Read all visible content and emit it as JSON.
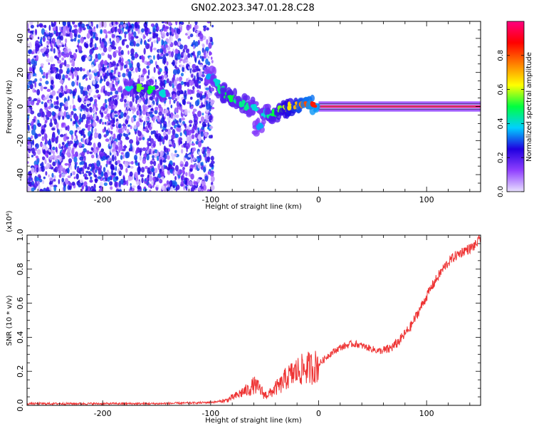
{
  "figure": {
    "title": "GN02.2023.347.01.28.C28"
  },
  "chart_data": [
    {
      "type": "heatmap",
      "panel": "spectrogram",
      "xlabel": "Height of straight line (km)",
      "ylabel": "Frequency (Hz)",
      "xlim": [
        -270,
        150
      ],
      "ylim": [
        -50,
        50
      ],
      "xticks": [
        -200,
        -100,
        0,
        100
      ],
      "yticks": [
        -40,
        -20,
        0,
        20,
        40
      ],
      "colorbar": {
        "label": "Normalized spectral amplitude",
        "range": [
          0,
          1
        ],
        "ticks": [
          "0.0",
          "0.2",
          "0.4",
          "0.6",
          "0.8"
        ],
        "colormap": [
          "#e8e0ff",
          "#9040ff",
          "#2000e0",
          "#00d0ff",
          "#00ff40",
          "#ffff00",
          "#ff8000",
          "#ff0000",
          "#ff0080"
        ]
      },
      "signal_track": [
        {
          "x": -175,
          "y": 10,
          "a": 0.4
        },
        {
          "x": -165,
          "y": 11,
          "a": 0.55
        },
        {
          "x": -155,
          "y": 10,
          "a": 0.5
        },
        {
          "x": -145,
          "y": 8,
          "a": 0.4
        },
        {
          "x": -100,
          "y": 18,
          "a": 0.35
        },
        {
          "x": -95,
          "y": 14,
          "a": 0.4
        },
        {
          "x": -90,
          "y": 10,
          "a": 0.45
        },
        {
          "x": -85,
          "y": 7,
          "a": 0.5
        },
        {
          "x": -80,
          "y": 5,
          "a": 0.5
        },
        {
          "x": -75,
          "y": 3,
          "a": 0.45
        },
        {
          "x": -70,
          "y": 2,
          "a": 0.45
        },
        {
          "x": -65,
          "y": 0,
          "a": 0.45
        },
        {
          "x": -60,
          "y": -1,
          "a": 0.4
        },
        {
          "x": -55,
          "y": -12,
          "a": 0.35
        },
        {
          "x": -50,
          "y": -4,
          "a": 0.4
        },
        {
          "x": -45,
          "y": -5,
          "a": 0.45
        },
        {
          "x": -40,
          "y": -4,
          "a": 0.5
        },
        {
          "x": -35,
          "y": -2,
          "a": 0.55
        },
        {
          "x": -30,
          "y": -1,
          "a": 0.6
        },
        {
          "x": -25,
          "y": 0,
          "a": 0.65
        },
        {
          "x": -20,
          "y": 1,
          "a": 0.7
        },
        {
          "x": -15,
          "y": 1,
          "a": 0.75
        },
        {
          "x": -10,
          "y": 1,
          "a": 0.8
        },
        {
          "x": -5,
          "y": 1,
          "a": 0.85
        },
        {
          "x": 0,
          "y": 0,
          "a": 1.0
        },
        {
          "x": 150,
          "y": 0,
          "a": 1.0
        }
      ]
    },
    {
      "type": "line",
      "panel": "snr",
      "xlabel": "Height of straight line (km)",
      "ylabel": "SNR (10 * v/v)",
      "scale_label": "(x10⁴)",
      "xlim": [
        -270,
        150
      ],
      "ylim": [
        0,
        1.0
      ],
      "xticks": [
        -200,
        -100,
        0,
        100
      ],
      "yticks": [
        "0.0",
        "0.2",
        "0.4",
        "0.6",
        "0.8",
        "1.0"
      ],
      "color": "#ee3333",
      "x": [
        -270,
        -200,
        -150,
        -110,
        -95,
        -85,
        -75,
        -70,
        -65,
        -60,
        -55,
        -50,
        -45,
        -40,
        -35,
        -30,
        -25,
        -20,
        -15,
        -10,
        -5,
        0,
        5,
        10,
        15,
        20,
        25,
        30,
        35,
        40,
        45,
        50,
        55,
        60,
        65,
        70,
        75,
        80,
        85,
        90,
        95,
        100,
        105,
        110,
        115,
        120,
        125,
        130,
        135,
        140,
        145,
        150
      ],
      "y": [
        0.01,
        0.01,
        0.01,
        0.015,
        0.02,
        0.03,
        0.06,
        0.08,
        0.09,
        0.12,
        0.1,
        0.06,
        0.07,
        0.1,
        0.12,
        0.16,
        0.18,
        0.2,
        0.21,
        0.22,
        0.22,
        0.24,
        0.27,
        0.3,
        0.32,
        0.34,
        0.35,
        0.36,
        0.36,
        0.35,
        0.34,
        0.33,
        0.32,
        0.32,
        0.33,
        0.35,
        0.38,
        0.42,
        0.46,
        0.52,
        0.58,
        0.64,
        0.7,
        0.75,
        0.8,
        0.84,
        0.87,
        0.89,
        0.91,
        0.92,
        0.94,
        0.98
      ]
    }
  ]
}
